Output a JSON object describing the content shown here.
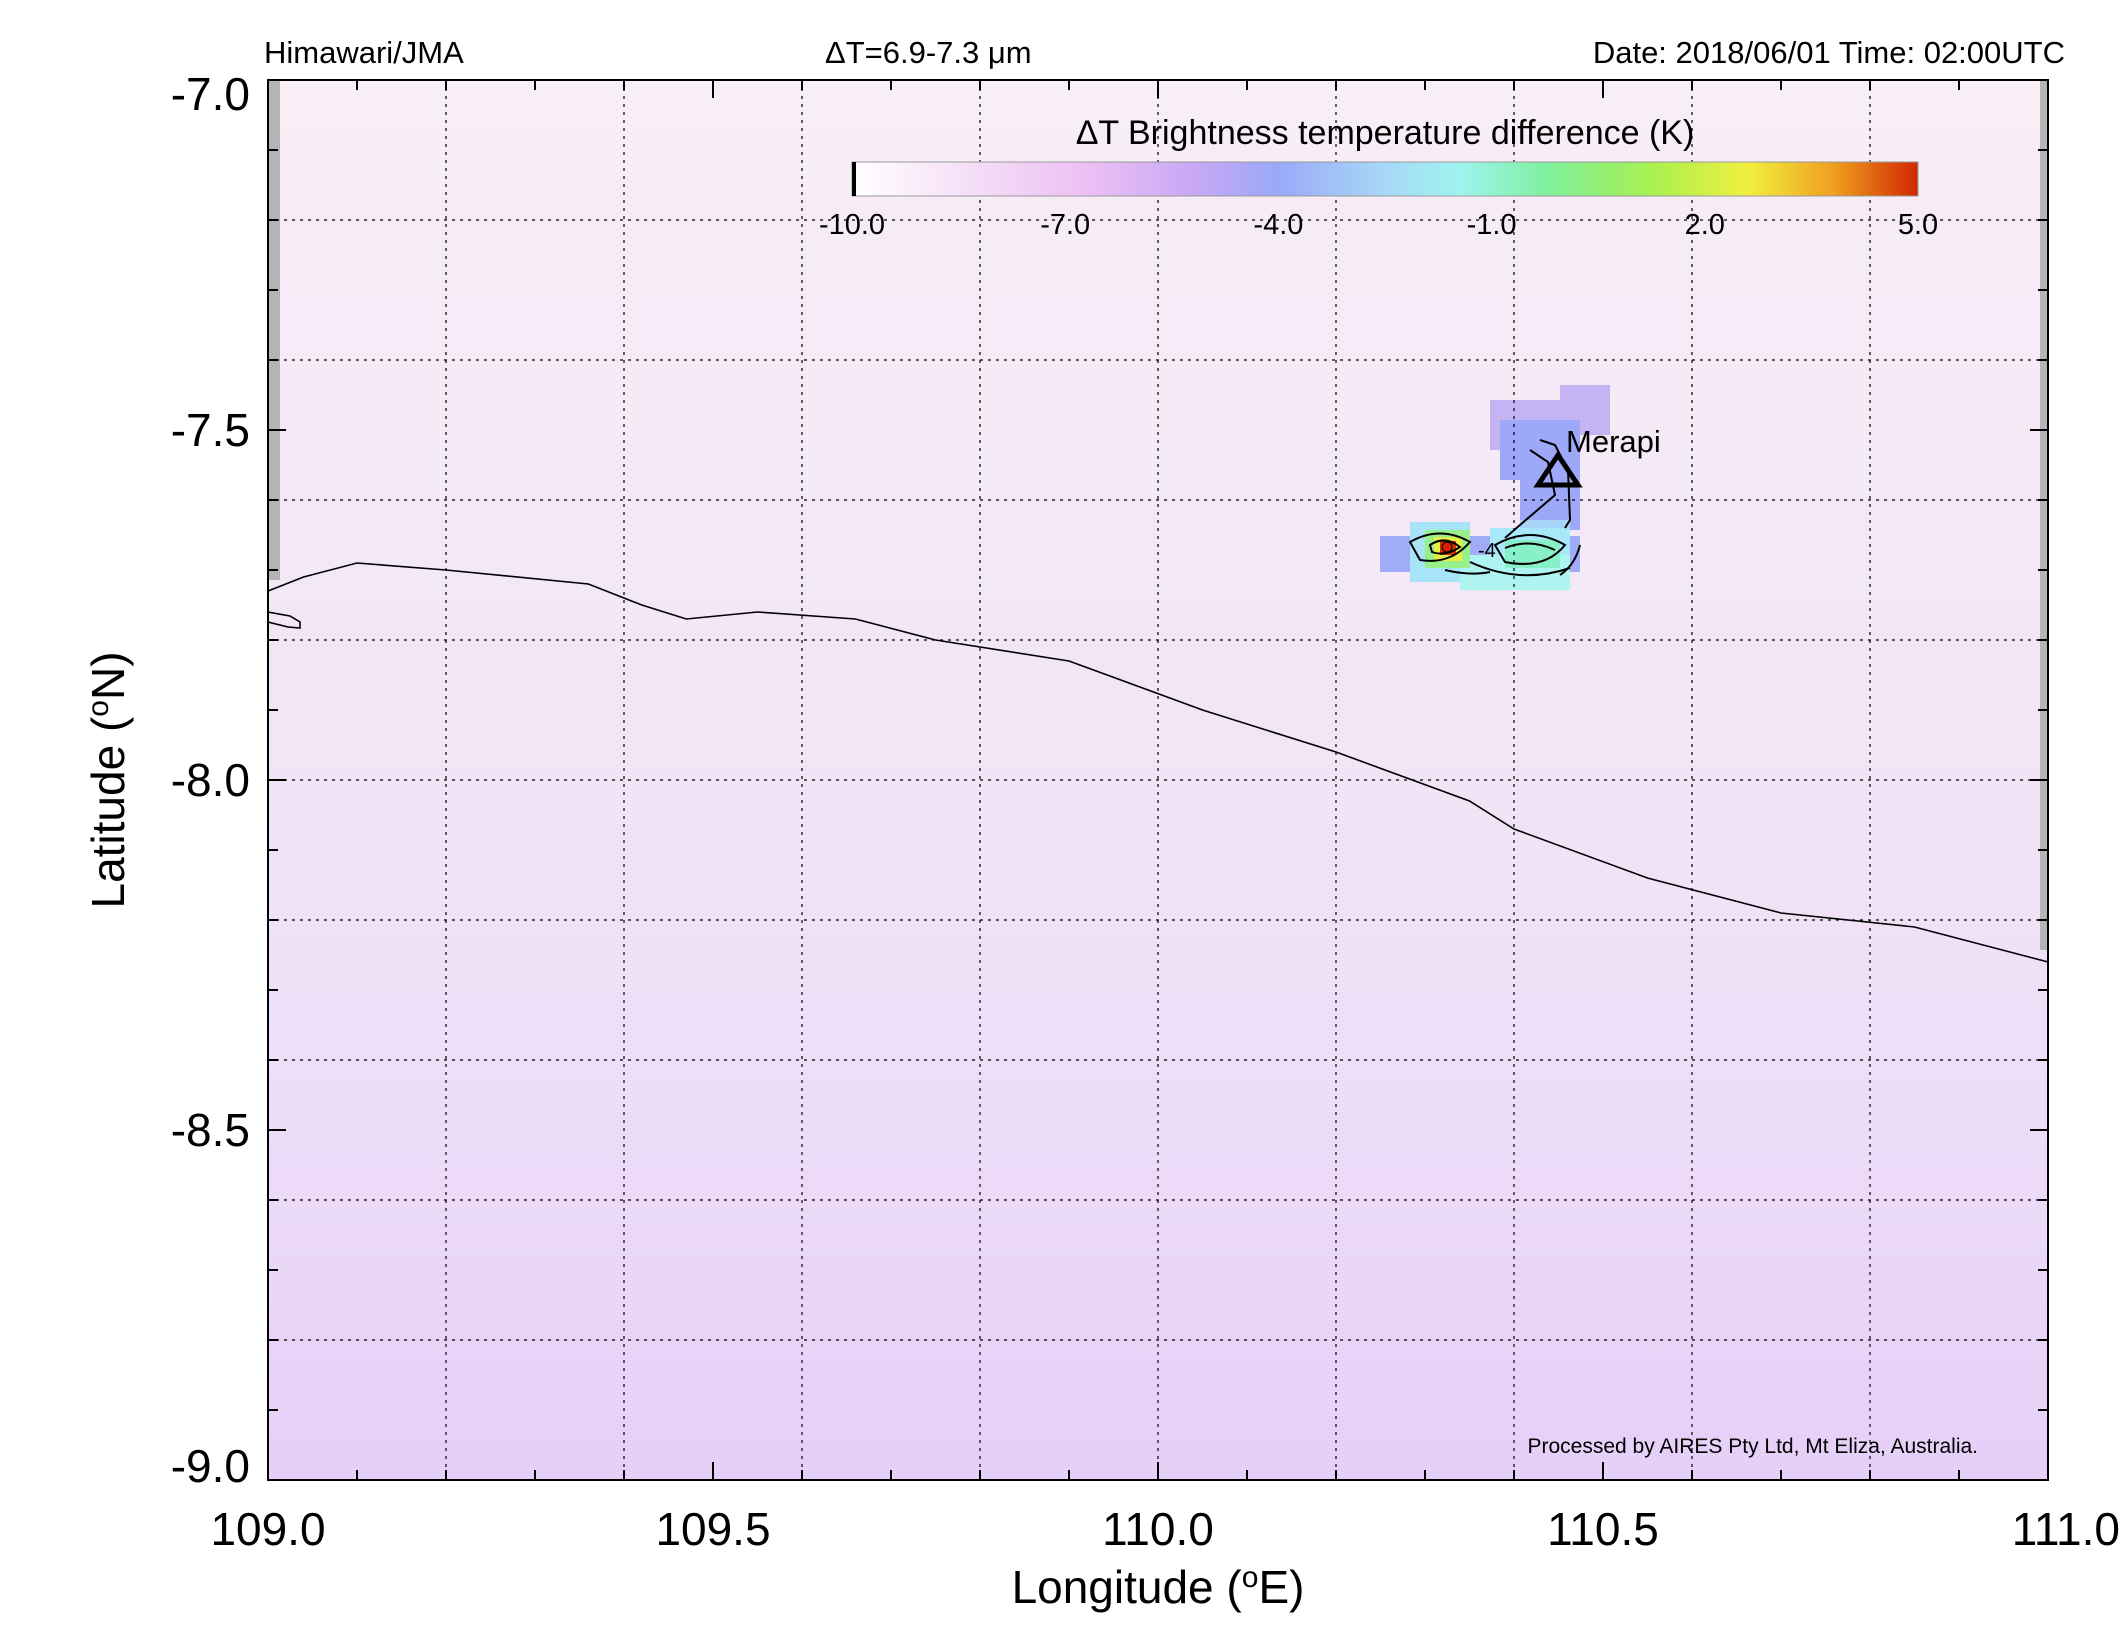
{
  "header": {
    "source": "Himawari/JMA",
    "band": "ΔT=6.9-7.3 μm",
    "datetime": "Date: 2018/06/01 Time: 02:00UTC"
  },
  "axes": {
    "xlabel": "Longitude (oE)",
    "ylabel": "Latitude (oN)",
    "x_ticks": [
      "109.0",
      "109.5",
      "110.0",
      "110.5",
      "111.0"
    ],
    "y_ticks": [
      "-7.0",
      "-7.5",
      "-8.0",
      "-8.5",
      "-9.0"
    ]
  },
  "colorbar": {
    "title": "ΔT Brightness temperature difference (K)",
    "ticks": [
      "-10.0",
      "-7.0",
      "-4.0",
      "-1.0",
      "2.0",
      "5.0"
    ],
    "colors": [
      "#ffffff",
      "#f0c8f4",
      "#c8a8f4",
      "#9aa8f8",
      "#a8ecf8",
      "#80f0c0",
      "#80f060",
      "#e8f040",
      "#f09020",
      "#d02800"
    ]
  },
  "annotations": {
    "volcano": "Merapi",
    "contour_label": "-4",
    "credit": "Processed by AIRES Pty Ltd, Mt Eliza, Australia."
  },
  "chart_data": {
    "type": "heatmap",
    "title": "ΔT Brightness temperature difference (K)",
    "xlabel": "Longitude (oE)",
    "ylabel": "Latitude (oN)",
    "xlim": [
      109.0,
      111.0
    ],
    "ylim": [
      -9.0,
      -7.0
    ],
    "value_range": [
      -10.0,
      5.0
    ],
    "volcano": {
      "name": "Merapi",
      "lon": 110.44,
      "lat": -7.54
    },
    "hotspot": {
      "lon": 110.33,
      "lat": -7.66,
      "value": 5.0
    },
    "coastline": [
      [
        109.0,
        -7.73
      ],
      [
        109.04,
        -7.71
      ],
      [
        109.1,
        -7.69
      ],
      [
        109.2,
        -7.7
      ],
      [
        109.36,
        -7.72
      ],
      [
        109.42,
        -7.75
      ],
      [
        109.47,
        -7.77
      ],
      [
        109.55,
        -7.76
      ],
      [
        109.66,
        -7.77
      ],
      [
        109.75,
        -7.8
      ],
      [
        109.9,
        -7.83
      ],
      [
        110.05,
        -7.9
      ],
      [
        110.2,
        -7.96
      ],
      [
        110.35,
        -8.03
      ],
      [
        110.4,
        -8.07
      ],
      [
        110.55,
        -8.14
      ],
      [
        110.7,
        -8.19
      ],
      [
        110.85,
        -8.21
      ],
      [
        111.0,
        -8.26
      ]
    ],
    "grid": true,
    "legend": "top colorbar"
  }
}
